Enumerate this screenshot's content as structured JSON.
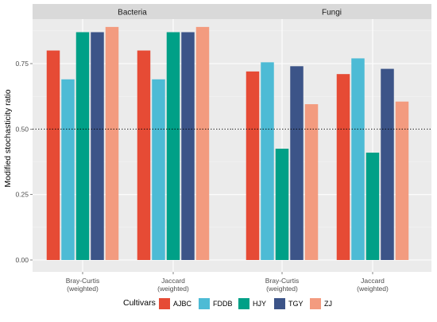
{
  "chart_data": {
    "type": "bar",
    "ylabel": "Modified stochasticity ratio",
    "ylim": [
      0,
      0.92
    ],
    "yticks": [
      "0.00",
      "0.25",
      "0.50",
      "0.75"
    ],
    "reference_line": {
      "y": 0.5,
      "style": "dotted"
    },
    "categories": [
      "Bray-Curtis\n(weighted)",
      "Jaccard\n(weighted)"
    ],
    "legend": {
      "title": "Cultivars",
      "position": "bottom"
    },
    "series": [
      {
        "name": "AJBC",
        "color": "#E64B35"
      },
      {
        "name": "FDDB",
        "color": "#4DBBD5"
      },
      {
        "name": "HJY",
        "color": "#00A087"
      },
      {
        "name": "TGY",
        "color": "#3C5488"
      },
      {
        "name": "ZJ",
        "color": "#F39B7F"
      }
    ],
    "panels": [
      {
        "title": "Bacteria",
        "values": [
          [
            0.8,
            0.69,
            0.87,
            0.87,
            0.89
          ],
          [
            0.8,
            0.69,
            0.87,
            0.87,
            0.89
          ]
        ]
      },
      {
        "title": "Fungi",
        "values": [
          [
            0.72,
            0.755,
            0.425,
            0.74,
            0.595
          ],
          [
            0.71,
            0.77,
            0.41,
            0.73,
            0.605
          ]
        ]
      }
    ]
  }
}
